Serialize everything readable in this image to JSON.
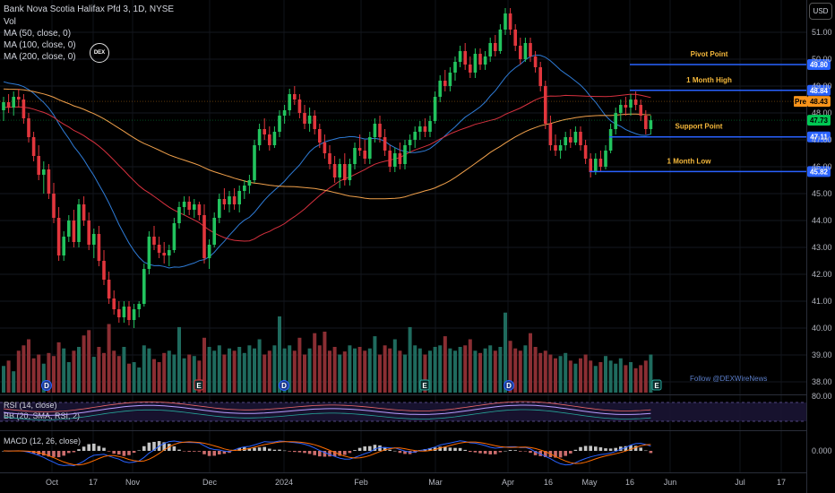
{
  "header": {
    "symbol": "Bank Nova Scotia Halifax Pfd 3, 1D, NYSE",
    "vol": "Vol",
    "ma1": "MA (50, close, 0)",
    "ma2": "MA (100, close, 0)",
    "ma3": "MA (200, close, 0)"
  },
  "logo_text": "DEX",
  "currency": "USD",
  "watermark": "Follow @DEXWireNews",
  "chart_data": {
    "type": "candlestick",
    "y_ticks": [
      "51.00",
      "50.00",
      "49.00",
      "48.00",
      "47.00",
      "46.00",
      "45.00",
      "44.00",
      "43.00",
      "42.00",
      "41.00",
      "40.00",
      "39.00",
      "38.00"
    ],
    "x_ticks": [
      "Oct",
      "17",
      "Nov",
      "Dec",
      "2024",
      "Feb",
      "Mar",
      "Apr",
      "16",
      "May",
      "16",
      "Jun",
      "Jul",
      "17"
    ],
    "ylim": [
      37.6,
      52.2
    ],
    "levels": [
      {
        "label": "Pivot Point",
        "value": 49.8,
        "price": "49.80"
      },
      {
        "label": "1 Month High",
        "value": 48.84,
        "price": "48.84"
      },
      {
        "label": "Support Point",
        "value": 47.11,
        "price": "47.11"
      },
      {
        "label": "1 Month Low",
        "value": 45.82,
        "price": "45.82"
      }
    ],
    "tags": [
      {
        "label": "Pre",
        "price": "48.43",
        "value": 48.43,
        "color": "#f7931a"
      },
      {
        "label": "",
        "price": "47.73",
        "value": 47.73,
        "color": "#00c853"
      }
    ],
    "candles": [
      [
        48.1,
        48.6,
        47.7,
        48.4
      ],
      [
        48.4,
        48.7,
        48.0,
        48.2
      ],
      [
        48.2,
        48.8,
        47.9,
        48.6
      ],
      [
        48.6,
        48.9,
        48.2,
        48.5
      ],
      [
        48.5,
        48.7,
        47.6,
        47.8
      ],
      [
        47.8,
        48.0,
        46.9,
        47.1
      ],
      [
        47.1,
        47.3,
        46.2,
        46.4
      ],
      [
        46.4,
        46.8,
        45.5,
        45.7
      ],
      [
        45.7,
        46.2,
        45.0,
        45.9
      ],
      [
        45.9,
        46.1,
        44.8,
        45.0
      ],
      [
        45.0,
        45.4,
        43.9,
        44.1
      ],
      [
        44.1,
        44.5,
        42.5,
        42.7
      ],
      [
        42.7,
        43.6,
        42.5,
        43.4
      ],
      [
        43.4,
        44.2,
        43.2,
        44.0
      ],
      [
        44.0,
        44.4,
        43.0,
        43.2
      ],
      [
        43.2,
        44.8,
        43.0,
        44.6
      ],
      [
        44.6,
        44.9,
        43.8,
        44.0
      ],
      [
        44.0,
        44.3,
        42.9,
        43.1
      ],
      [
        43.1,
        43.7,
        42.6,
        43.5
      ],
      [
        43.5,
        43.8,
        42.3,
        42.5
      ],
      [
        42.5,
        42.9,
        41.6,
        41.8
      ],
      [
        41.8,
        42.1,
        40.9,
        41.1
      ],
      [
        41.1,
        41.4,
        40.5,
        40.7
      ],
      [
        40.7,
        41.0,
        40.2,
        40.4
      ],
      [
        40.4,
        41.0,
        40.2,
        40.8
      ],
      [
        40.8,
        41.0,
        40.1,
        40.3
      ],
      [
        40.3,
        40.9,
        40.0,
        40.7
      ],
      [
        40.7,
        41.0,
        40.4,
        40.9
      ],
      [
        40.9,
        42.4,
        40.8,
        42.2
      ],
      [
        42.2,
        43.6,
        42.0,
        43.4
      ],
      [
        43.4,
        43.8,
        42.9,
        43.1
      ],
      [
        43.1,
        43.4,
        42.6,
        42.8
      ],
      [
        42.8,
        43.2,
        42.4,
        42.7
      ],
      [
        42.7,
        43.1,
        42.3,
        42.9
      ],
      [
        42.9,
        44.1,
        42.8,
        43.9
      ],
      [
        43.9,
        44.7,
        43.7,
        44.5
      ],
      [
        44.5,
        44.9,
        44.2,
        44.7
      ],
      [
        44.7,
        44.9,
        44.2,
        44.4
      ],
      [
        44.4,
        44.8,
        44.1,
        44.6
      ],
      [
        44.6,
        44.7,
        44.0,
        44.2
      ],
      [
        44.2,
        44.6,
        42.4,
        42.6
      ],
      [
        42.6,
        43.3,
        42.2,
        43.1
      ],
      [
        43.1,
        44.3,
        43.0,
        44.1
      ],
      [
        44.1,
        45.0,
        43.9,
        44.8
      ],
      [
        44.8,
        45.2,
        44.4,
        44.6
      ],
      [
        44.6,
        45.1,
        44.3,
        44.9
      ],
      [
        44.9,
        45.2,
        44.4,
        44.6
      ],
      [
        44.6,
        45.3,
        44.3,
        45.1
      ],
      [
        45.1,
        45.5,
        44.8,
        45.3
      ],
      [
        45.3,
        45.7,
        45.0,
        45.5
      ],
      [
        45.5,
        47.0,
        45.4,
        46.8
      ],
      [
        46.8,
        47.6,
        46.6,
        47.4
      ],
      [
        47.4,
        47.8,
        47.0,
        47.2
      ],
      [
        47.2,
        47.5,
        46.6,
        46.8
      ],
      [
        46.8,
        47.5,
        46.7,
        47.3
      ],
      [
        47.3,
        48.1,
        47.1,
        47.9
      ],
      [
        47.9,
        48.3,
        47.6,
        48.1
      ],
      [
        48.1,
        48.9,
        47.9,
        48.7
      ],
      [
        48.7,
        49.0,
        48.3,
        48.5
      ],
      [
        48.5,
        48.7,
        47.8,
        48.0
      ],
      [
        48.0,
        48.3,
        47.4,
        47.6
      ],
      [
        47.6,
        48.2,
        47.3,
        47.9
      ],
      [
        47.9,
        48.1,
        47.2,
        47.4
      ],
      [
        47.4,
        47.6,
        46.7,
        46.9
      ],
      [
        46.9,
        47.2,
        46.3,
        46.5
      ],
      [
        46.5,
        46.8,
        45.9,
        46.1
      ],
      [
        46.1,
        46.4,
        45.4,
        45.6
      ],
      [
        45.6,
        46.3,
        45.2,
        46.1
      ],
      [
        46.1,
        46.5,
        45.3,
        45.5
      ],
      [
        45.5,
        46.3,
        45.3,
        46.1
      ],
      [
        46.1,
        46.9,
        45.9,
        46.7
      ],
      [
        46.7,
        47.2,
        46.4,
        46.6
      ],
      [
        46.6,
        47.0,
        46.1,
        46.3
      ],
      [
        46.3,
        47.3,
        46.1,
        47.1
      ],
      [
        47.1,
        47.8,
        46.9,
        47.6
      ],
      [
        47.6,
        47.9,
        46.9,
        47.1
      ],
      [
        47.1,
        47.4,
        46.4,
        46.6
      ],
      [
        46.6,
        46.8,
        45.8,
        46.0
      ],
      [
        46.0,
        46.7,
        45.8,
        46.5
      ],
      [
        46.5,
        46.9,
        45.9,
        46.1
      ],
      [
        46.1,
        47.0,
        45.9,
        46.8
      ],
      [
        46.8,
        47.2,
        46.5,
        47.0
      ],
      [
        47.0,
        47.5,
        46.7,
        47.3
      ],
      [
        47.3,
        47.7,
        47.0,
        47.5
      ],
      [
        47.5,
        47.8,
        47.1,
        47.3
      ],
      [
        47.3,
        47.9,
        47.1,
        47.7
      ],
      [
        47.7,
        48.8,
        47.6,
        48.6
      ],
      [
        48.6,
        49.4,
        48.4,
        49.2
      ],
      [
        49.2,
        49.6,
        48.8,
        49.0
      ],
      [
        49.0,
        49.7,
        48.8,
        49.5
      ],
      [
        49.5,
        50.1,
        49.2,
        49.9
      ],
      [
        49.9,
        50.5,
        49.7,
        50.3
      ],
      [
        50.3,
        50.6,
        49.6,
        49.8
      ],
      [
        49.8,
        50.1,
        49.3,
        49.5
      ],
      [
        49.5,
        50.4,
        49.3,
        50.2
      ],
      [
        50.2,
        50.4,
        49.6,
        49.8
      ],
      [
        49.8,
        50.3,
        49.6,
        50.1
      ],
      [
        50.1,
        50.8,
        49.9,
        50.6
      ],
      [
        50.6,
        50.9,
        50.1,
        50.3
      ],
      [
        50.3,
        51.3,
        50.2,
        51.1
      ],
      [
        51.1,
        51.9,
        50.9,
        51.7
      ],
      [
        51.7,
        51.9,
        50.9,
        51.1
      ],
      [
        51.1,
        51.3,
        50.3,
        50.5
      ],
      [
        50.5,
        50.8,
        49.8,
        50.0
      ],
      [
        50.0,
        50.8,
        49.9,
        50.6
      ],
      [
        50.6,
        50.8,
        49.9,
        50.1
      ],
      [
        50.1,
        50.3,
        49.5,
        49.7
      ],
      [
        49.7,
        49.9,
        48.8,
        49.0
      ],
      [
        49.0,
        49.2,
        47.4,
        47.6
      ],
      [
        47.6,
        47.9,
        46.6,
        46.8
      ],
      [
        46.8,
        47.2,
        46.4,
        46.6
      ],
      [
        46.6,
        47.0,
        46.3,
        46.8
      ],
      [
        46.8,
        47.3,
        46.6,
        47.1
      ],
      [
        47.1,
        47.4,
        46.7,
        46.9
      ],
      [
        46.9,
        47.5,
        46.8,
        47.3
      ],
      [
        47.3,
        47.5,
        46.6,
        46.8
      ],
      [
        46.8,
        47.0,
        46.1,
        46.3
      ],
      [
        46.3,
        46.5,
        45.6,
        45.8
      ],
      [
        45.8,
        46.5,
        45.7,
        46.3
      ],
      [
        46.3,
        46.6,
        45.8,
        46.0
      ],
      [
        46.0,
        46.8,
        45.9,
        46.6
      ],
      [
        46.6,
        47.6,
        46.5,
        47.4
      ],
      [
        47.4,
        48.2,
        47.2,
        48.0
      ],
      [
        48.0,
        48.5,
        47.7,
        48.3
      ],
      [
        48.3,
        48.6,
        47.9,
        48.2
      ],
      [
        48.2,
        48.7,
        47.9,
        48.5
      ],
      [
        48.5,
        48.8,
        48.1,
        48.3
      ],
      [
        48.3,
        48.5,
        47.7,
        47.9
      ],
      [
        47.9,
        48.1,
        47.2,
        47.4
      ],
      [
        47.4,
        47.9,
        47.2,
        47.73
      ]
    ],
    "volume": [
      0.35,
      0.42,
      0.28,
      0.55,
      0.62,
      0.7,
      0.45,
      0.5,
      0.38,
      0.52,
      0.48,
      0.66,
      0.58,
      0.4,
      0.55,
      0.6,
      0.75,
      0.82,
      0.47,
      0.6,
      0.52,
      0.9,
      0.55,
      0.48,
      0.6,
      0.38,
      0.4,
      0.33,
      0.62,
      0.58,
      0.44,
      0.4,
      0.52,
      0.55,
      0.5,
      0.86,
      0.45,
      0.5,
      0.48,
      0.42,
      0.72,
      0.6,
      0.55,
      0.62,
      0.5,
      0.58,
      0.55,
      0.6,
      0.52,
      0.62,
      0.58,
      0.7,
      0.5,
      0.55,
      0.62,
      1.0,
      0.58,
      0.62,
      0.55,
      0.72,
      0.5,
      0.58,
      0.78,
      0.62,
      0.8,
      0.55,
      0.6,
      0.5,
      0.54,
      0.62,
      0.58,
      0.6,
      0.55,
      0.58,
      0.74,
      0.5,
      0.62,
      0.58,
      0.7,
      0.55,
      0.5,
      0.86,
      0.62,
      0.58,
      0.5,
      0.55,
      0.6,
      0.62,
      0.74,
      0.58,
      0.55,
      0.6,
      0.62,
      0.7,
      0.55,
      0.52,
      0.58,
      0.62,
      0.55,
      0.6,
      1.05,
      0.68,
      0.58,
      0.55,
      0.62,
      0.78,
      0.6,
      0.52,
      0.55,
      0.5,
      0.45,
      0.48,
      0.52,
      0.42,
      0.38,
      0.45,
      0.5,
      0.42,
      0.35,
      0.4,
      0.48,
      0.42,
      0.38,
      0.45,
      0.36,
      0.4,
      0.32,
      0.36,
      0.42,
      0.5
    ]
  }
}
